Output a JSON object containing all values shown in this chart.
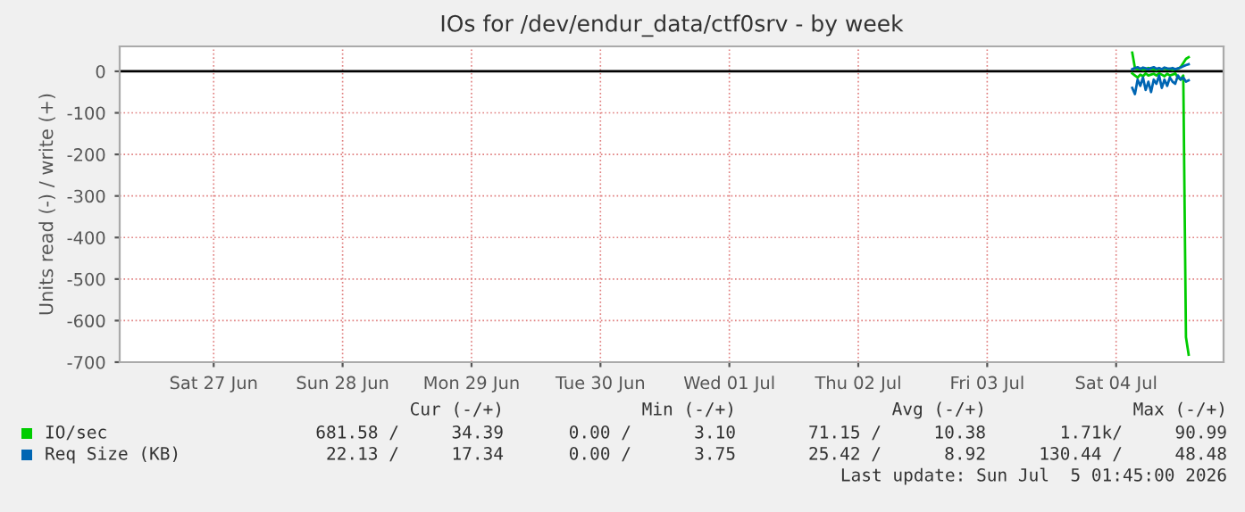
{
  "chart_data": {
    "type": "line",
    "title": "IOs for /dev/endur_data/ctf0srv - by week",
    "ylabel": "Units read (-) / write (+)",
    "x": [
      "2026-07-04T15:00",
      "2026-07-04T15:30",
      "2026-07-04T16:00",
      "2026-07-04T16:30",
      "2026-07-04T17:00",
      "2026-07-04T17:30",
      "2026-07-04T18:00",
      "2026-07-04T18:30",
      "2026-07-04T19:00",
      "2026-07-04T19:30",
      "2026-07-04T20:00",
      "2026-07-04T20:30",
      "2026-07-04T21:00",
      "2026-07-04T21:30",
      "2026-07-04T22:00",
      "2026-07-04T22:30",
      "2026-07-04T23:00",
      "2026-07-04T23:30",
      "2026-07-05T00:00",
      "2026-07-05T00:30",
      "2026-07-05T01:00",
      "2026-07-05T01:30"
    ],
    "series": [
      {
        "name": "IO/sec",
        "color": "#00cc00",
        "values": [
          45,
          8,
          5,
          6,
          4,
          5,
          8,
          6,
          5,
          4,
          6,
          5,
          7,
          5,
          6,
          4,
          5,
          6,
          10,
          20,
          30,
          34
        ]
      },
      {
        "color": "#00cc00",
        "values": [
          -5,
          -10,
          -15,
          -8,
          -12,
          -5,
          -10,
          -8,
          -6,
          -10,
          -5,
          -8,
          -12,
          -6,
          -10,
          -8,
          -5,
          -15,
          -20,
          -10,
          -640,
          -682
        ]
      },
      {
        "name": "Req Size (KB)",
        "color": "#0066b3",
        "values": [
          5,
          8,
          10,
          6,
          9,
          7,
          5,
          8,
          10,
          6,
          8,
          5,
          9,
          7,
          6,
          8,
          5,
          7,
          9,
          12,
          15,
          17
        ]
      },
      {
        "color": "#0066b3",
        "values": [
          -40,
          -55,
          -20,
          -35,
          -15,
          -45,
          -25,
          -50,
          -20,
          -30,
          -10,
          -40,
          -20,
          -35,
          -15,
          -25,
          -30,
          -10,
          -20,
          -15,
          -25,
          -22
        ]
      }
    ],
    "xlim": [
      "2026-06-26T18:30",
      "2026-07-05T08:00"
    ],
    "xticks": [
      {
        "value": "2026-06-27T12:00",
        "label": "Sat 27 Jun"
      },
      {
        "value": "2026-06-28T12:00",
        "label": "Sun 28 Jun"
      },
      {
        "value": "2026-06-29T12:00",
        "label": "Mon 29 Jun"
      },
      {
        "value": "2026-06-30T12:00",
        "label": "Tue 30 Jun"
      },
      {
        "value": "2026-07-01T12:00",
        "label": "Wed 01 Jul"
      },
      {
        "value": "2026-07-02T12:00",
        "label": "Thu 02 Jul"
      },
      {
        "value": "2026-07-03T12:00",
        "label": "Fri 03 Jul"
      },
      {
        "value": "2026-07-04T12:00",
        "label": "Sat 04 Jul"
      }
    ],
    "ylim": [
      -700,
      60
    ],
    "yticks": [
      0,
      -100,
      -200,
      -300,
      -400,
      -500,
      -600,
      -700
    ],
    "ref_lines": [
      {
        "axis": "y",
        "value": 0,
        "color": "#000000"
      }
    ],
    "grid": true,
    "legend": "bottom",
    "marker": "none",
    "line_style": "solid",
    "annotations": [
      "Cur (-/+)",
      "Min (-/+)",
      "Avg (-/+)",
      "Max (-/+)",
      "681.58 /     34.39",
      "0.00 /      3.10",
      "71.15 /     10.38",
      "1.71k/     90.99",
      "22.13 /     17.34",
      "0.00 /      3.75",
      "25.42 /      8.92",
      "130.44 /     48.48",
      "Last update: Sun Jul  5 01:45:00 2026"
    ]
  }
}
